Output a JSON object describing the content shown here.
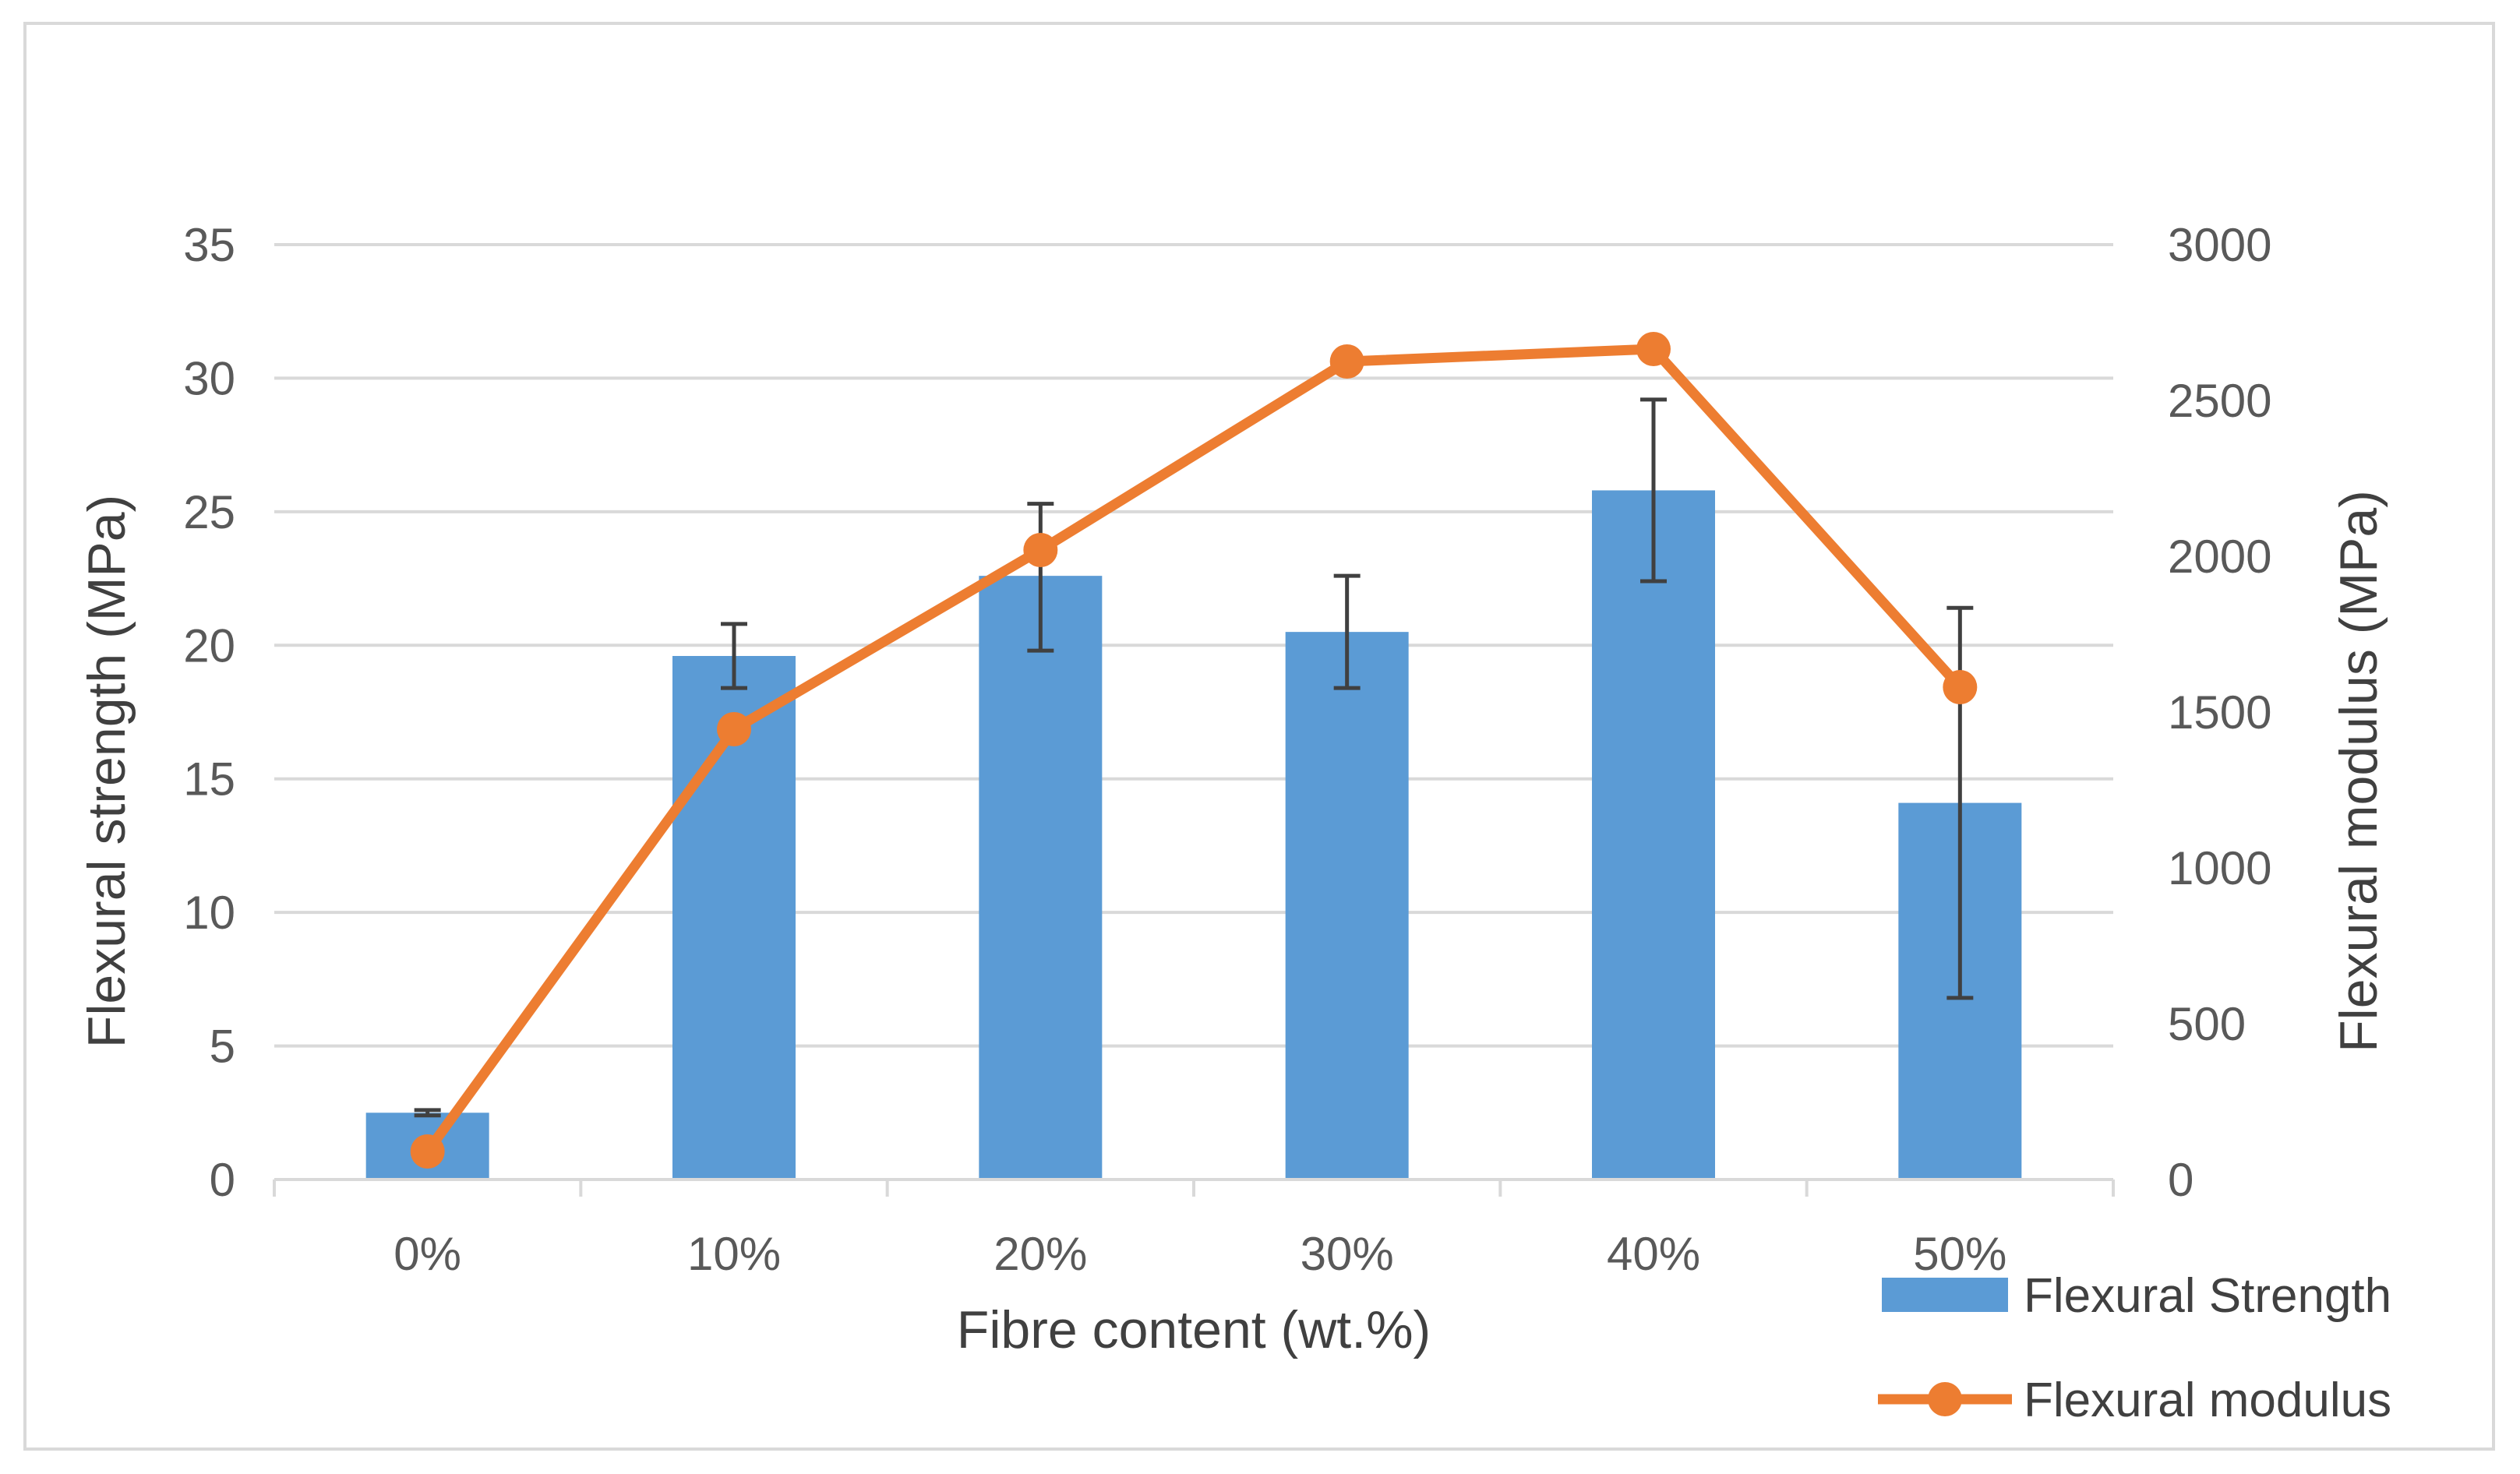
{
  "chart_data": {
    "type": "bar",
    "title": "",
    "categories": [
      "0%",
      "10%",
      "20%",
      "30%",
      "40%",
      "50%"
    ],
    "xlabel": "Fibre content (wt.%)",
    "ylabel": "Flexural strength (MPa)",
    "y2label": "Flexural modulus  (MPa)",
    "ylim": [
      0,
      35
    ],
    "y_ticks": [
      "0",
      "5",
      "10",
      "15",
      "20",
      "25",
      "30",
      "35"
    ],
    "y2lim": [
      0,
      3000
    ],
    "y2_ticks": [
      "0",
      "500",
      "1000",
      "1500",
      "2000",
      "2500",
      "3000"
    ],
    "grid": true,
    "legend_position": "bottom-right",
    "series": [
      {
        "name": "Flexural Strength",
        "kind": "bar",
        "axis": "left",
        "color": "#5b9bd5",
        "values": [
          2.5,
          19.6,
          22.6,
          20.5,
          25.8,
          14.1
        ],
        "error_low": [
          2.4,
          18.4,
          19.8,
          18.4,
          22.4,
          6.8
        ],
        "error_high": [
          2.6,
          20.8,
          25.3,
          22.6,
          29.2,
          21.4
        ]
      },
      {
        "name": "Flexural modulus",
        "kind": "line",
        "axis": "right",
        "color": "#ed7d31",
        "values": [
          90,
          1445,
          2020,
          2625,
          2665,
          1580
        ]
      }
    ]
  }
}
